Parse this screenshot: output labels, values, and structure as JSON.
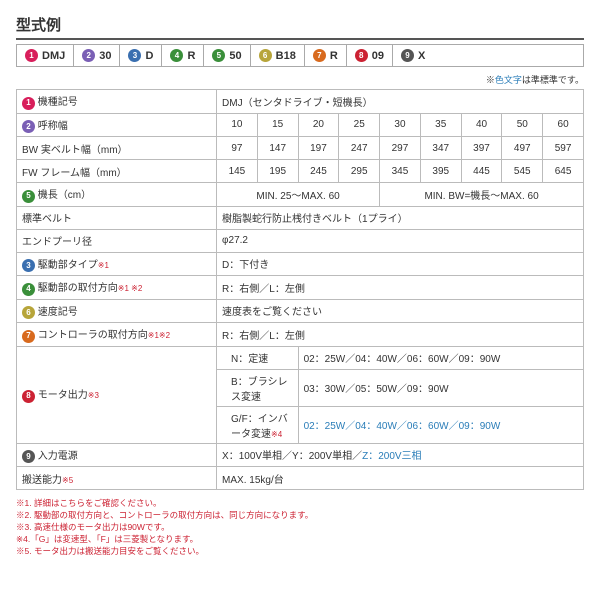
{
  "title": "型式例",
  "colors": {
    "1": "#d81e5b",
    "2": "#7a5fb5",
    "3": "#3a6fb0",
    "4": "#3a8f3a",
    "5": "#3a8f3a",
    "6": "#b7a53a",
    "7": "#d86a1e",
    "8": "#c23",
    "9": "#555"
  },
  "model": [
    {
      "n": "1",
      "v": "DMJ"
    },
    {
      "n": "2",
      "v": "30"
    },
    {
      "n": "3",
      "v": "D"
    },
    {
      "n": "4",
      "v": "R"
    },
    {
      "n": "5",
      "v": "50"
    },
    {
      "n": "6",
      "v": "B18"
    },
    {
      "n": "7",
      "v": "R"
    },
    {
      "n": "8",
      "v": "09"
    },
    {
      "n": "9",
      "v": "X"
    }
  ],
  "topNote": {
    "pre": "※",
    "blue": "色文字",
    "post": "は準標準です。"
  },
  "nums": [
    "10",
    "15",
    "20",
    "25",
    "30",
    "35",
    "40",
    "50",
    "60"
  ],
  "bw": [
    "97",
    "147",
    "197",
    "247",
    "297",
    "347",
    "397",
    "497",
    "597"
  ],
  "fw": [
    "145",
    "195",
    "245",
    "295",
    "345",
    "395",
    "445",
    "545",
    "645"
  ],
  "rows": {
    "r1": {
      "l": "機種記号",
      "v": "DMJ（センタドライブ・短機長）"
    },
    "r2": {
      "l": "呼称幅"
    },
    "r3": {
      "l": "BW 実ベルト幅（mm）"
    },
    "r4": {
      "l": "FW フレーム幅（mm）"
    },
    "r5": {
      "l": "機長（cm）",
      "v1": "MIN. 25～MAX. 60",
      "v2": "MIN. BW=機長～MAX. 60"
    },
    "r6": {
      "l": "標準ベルト",
      "v": "樹脂製蛇行防止桟付きベルト（1プライ）"
    },
    "r7": {
      "l": "エンドプーリ径",
      "v": "φ27.2"
    },
    "r8": {
      "l": "駆動部タイプ",
      "s": "※1",
      "v": "D：下付き"
    },
    "r9": {
      "l": "駆動部の取付方向",
      "s": "※1 ※2",
      "v": "R：右側／L：左側"
    },
    "r10": {
      "l": "速度記号",
      "v": "速度表をご覧ください"
    },
    "r11": {
      "l": "コントローラの取付方向",
      "s": "※1※2",
      "v": "R：右側／L：左側"
    },
    "r12": {
      "l": "モータ出力",
      "s": "※3",
      "a": {
        "k": "N：定速",
        "v": "02：25W／04：40W／06：60W／09：90W"
      },
      "b": {
        "k": "B：ブラシレス変速",
        "v": "03：30W／05：50W／09：90W"
      },
      "c": {
        "k": "G/F：インバータ変速",
        "s": "※4",
        "v": "02：25W／04：40W／06：60W／09：90W"
      }
    },
    "r13": {
      "l": "入力電源",
      "v": {
        "a": "X：100V単相／Y：200V単相／",
        "b": "Z：200V三相"
      }
    },
    "r14": {
      "l": "搬送能力",
      "s": "※5",
      "v": "MAX. 15kg/台"
    }
  },
  "foot": [
    "※1. 詳細はこちらをご確認ください。",
    "※2. 駆動部の取付方向と、コントローラの取付方向は、同じ方向になります。",
    "※3. 高速仕様のモータ出力は90Wです。",
    "※4.「G」は変速型、「F」は三菱製となります。",
    "※5. モータ出力は搬送能力目安をご覧ください。"
  ]
}
